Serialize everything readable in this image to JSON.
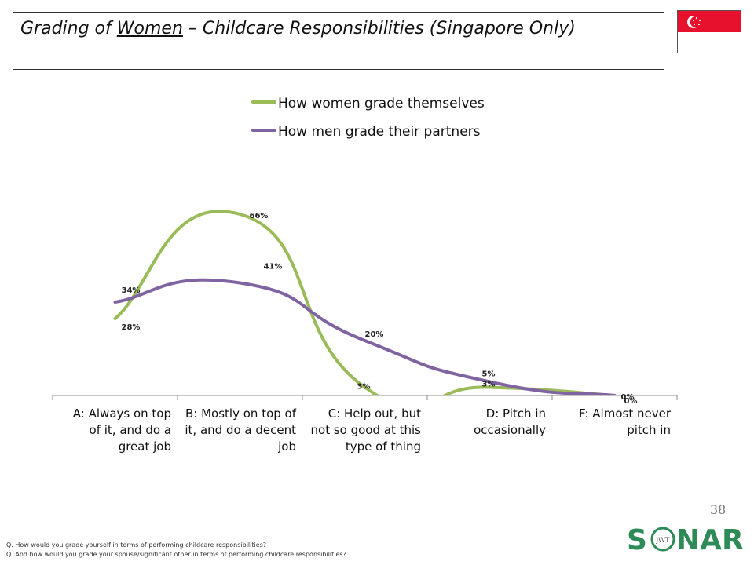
{
  "header": {
    "title_prefix": "Grading of ",
    "title_underlined": "Women",
    "title_suffix": " – Childcare Responsibilities (Singapore Only)"
  },
  "flag": {
    "name": "singapore-flag",
    "red": "#e8112d",
    "white": "#ffffff"
  },
  "chart_data": {
    "type": "line",
    "title": "Grading of Women – Childcare Responsibilities (Singapore Only)",
    "categories": [
      "A: Always on top of it, and do a great job",
      "B: Mostly on top of it, and do a decent job",
      "C: Help out, but not so good at this type of thing",
      "D: Pitch in occasionally",
      "F: Almost never pitch in"
    ],
    "category_lines": [
      [
        "A: Always on top",
        "of it, and do a",
        "great job"
      ],
      [
        "B: Mostly on top of",
        "it, and do a decent",
        "job"
      ],
      [
        "C: Help out, but",
        "not so good at this",
        "type of thing"
      ],
      [
        "D: Pitch in",
        "occasionally"
      ],
      [
        "F: Almost never",
        "pitch in"
      ]
    ],
    "series": [
      {
        "name": "How women grade themselves",
        "color": "#9bbb59",
        "values": [
          28,
          66,
          3,
          3,
          0
        ],
        "labels": [
          "28%",
          "66%",
          "3%",
          "3%",
          "0%"
        ]
      },
      {
        "name": "How men grade their partners",
        "color": "#8064a2",
        "values": [
          34,
          41,
          20,
          5,
          0
        ],
        "labels": [
          "34%",
          "41%",
          "20%",
          "5%",
          "0%"
        ]
      }
    ],
    "ylim": [
      0,
      80
    ],
    "legend": "top",
    "grid": false,
    "smooth": true,
    "xlabel": "",
    "ylabel": ""
  },
  "footer": {
    "page_number": "38",
    "logo_text_left": "S",
    "logo_text_right": "NAR",
    "logo_inner": "JWT",
    "notes": [
      "Q. How would you grade yourself in terms of performing childcare responsibilities?",
      "Q. And how would you grade your spouse/significant other in terms of performing childcare responsibilities?"
    ]
  }
}
